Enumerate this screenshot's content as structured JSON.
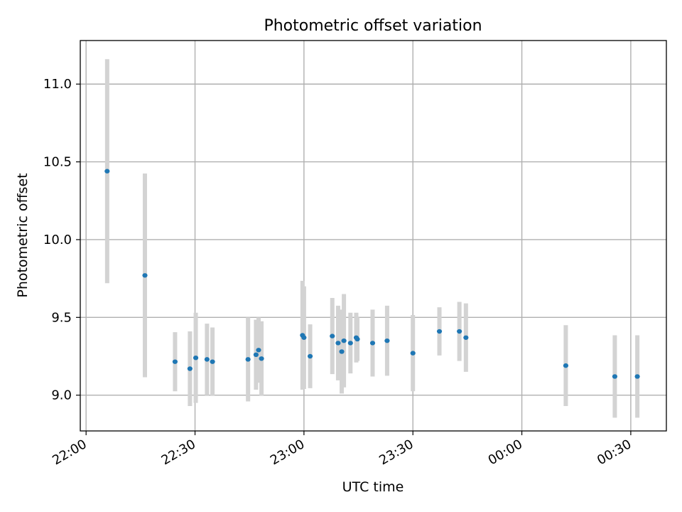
{
  "chart_data": {
    "type": "scatter",
    "title": "Photometric offset variation",
    "xlabel": "UTC time",
    "ylabel": "Photometric offset",
    "x_tick_labels": [
      "22:00",
      "22:30",
      "23:00",
      "23:30",
      "00:00",
      "00:30"
    ],
    "y_tick_labels": [
      "9.0",
      "9.5",
      "10.0",
      "10.5",
      "11.0"
    ],
    "y_ticks": [
      9.0,
      9.5,
      10.0,
      10.5,
      11.0
    ],
    "ylim": [
      8.77,
      11.28
    ],
    "xlim": [
      "21:58:24",
      "00:39:48"
    ],
    "grid": true,
    "colors": {
      "point": "#1f77b4",
      "errorbar": "#d3d3d3",
      "grid": "#b0b0b0"
    },
    "series": [
      {
        "points": [
          {
            "x": "22:05:48",
            "y": 10.44,
            "err": 0.72
          },
          {
            "x": "22:16:12",
            "y": 9.77,
            "err": 0.655
          },
          {
            "x": "22:24:30",
            "y": 9.215,
            "err": 0.19
          },
          {
            "x": "22:28:36",
            "y": 9.17,
            "err": 0.24
          },
          {
            "x": "22:30:12",
            "y": 9.24,
            "err": 0.29
          },
          {
            "x": "22:33:18",
            "y": 9.23,
            "err": 0.23
          },
          {
            "x": "22:34:48",
            "y": 9.215,
            "err": 0.22
          },
          {
            "x": "22:44:36",
            "y": 9.23,
            "err": 0.27
          },
          {
            "x": "22:46:48",
            "y": 9.26,
            "err": 0.225
          },
          {
            "x": "22:47:30",
            "y": 9.29,
            "err": 0.21
          },
          {
            "x": "22:48:18",
            "y": 9.235,
            "err": 0.24
          },
          {
            "x": "22:59:36",
            "y": 9.385,
            "err": 0.35
          },
          {
            "x": "23:00:00",
            "y": 9.37,
            "err": 0.33
          },
          {
            "x": "23:01:42",
            "y": 9.25,
            "err": 0.205
          },
          {
            "x": "23:07:48",
            "y": 9.38,
            "err": 0.245
          },
          {
            "x": "23:09:24",
            "y": 9.335,
            "err": 0.24
          },
          {
            "x": "23:10:24",
            "y": 9.28,
            "err": 0.27
          },
          {
            "x": "23:11:00",
            "y": 9.35,
            "err": 0.3
          },
          {
            "x": "23:12:48",
            "y": 9.335,
            "err": 0.195
          },
          {
            "x": "23:14:24",
            "y": 9.37,
            "err": 0.16
          },
          {
            "x": "23:14:42",
            "y": 9.36,
            "err": 0.14
          },
          {
            "x": "23:18:54",
            "y": 9.335,
            "err": 0.215
          },
          {
            "x": "23:22:54",
            "y": 9.35,
            "err": 0.225
          },
          {
            "x": "23:30:00",
            "y": 9.27,
            "err": 0.245
          },
          {
            "x": "23:37:18",
            "y": 9.41,
            "err": 0.155
          },
          {
            "x": "23:42:48",
            "y": 9.41,
            "err": 0.19
          },
          {
            "x": "23:44:36",
            "y": 9.37,
            "err": 0.22
          },
          {
            "x": "00:12:06",
            "y": 9.19,
            "err": 0.26
          },
          {
            "x": "00:25:36",
            "y": 9.12,
            "err": 0.265
          },
          {
            "x": "00:31:48",
            "y": 9.12,
            "err": 0.265
          }
        ]
      }
    ]
  }
}
